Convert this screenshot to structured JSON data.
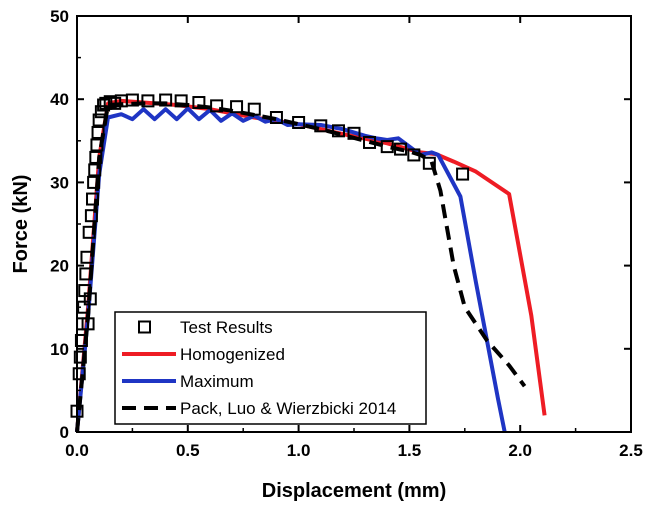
{
  "chart_data": {
    "type": "scatter",
    "xlabel": "Displacement (mm)",
    "ylabel": "Force (kN)",
    "xlim": [
      0,
      2.5
    ],
    "ylim": [
      0,
      50
    ],
    "xticks": [
      0.0,
      0.5,
      1.0,
      1.5,
      2.0,
      2.5
    ],
    "xtick_labels": [
      "0.0",
      "0.5",
      "1.0",
      "1.5",
      "2.0",
      "2.5"
    ],
    "yticks": [
      0,
      10,
      20,
      30,
      40,
      50
    ],
    "ytick_labels": [
      "0",
      "10",
      "20",
      "30",
      "40",
      "50"
    ],
    "grid": false,
    "legend_position": "bottom-left",
    "series": [
      {
        "name": "Test Results",
        "kind": "markers",
        "marker": "open-square",
        "color": "#000000",
        "x": [
          0.0,
          0.01,
          0.015,
          0.02,
          0.025,
          0.03,
          0.035,
          0.04,
          0.045,
          0.05,
          0.055,
          0.06,
          0.065,
          0.07,
          0.075,
          0.08,
          0.085,
          0.09,
          0.095,
          0.1,
          0.11,
          0.12,
          0.13,
          0.15,
          0.17,
          0.2,
          0.25,
          0.32,
          0.4,
          0.47,
          0.55,
          0.63,
          0.72,
          0.8,
          0.9,
          1.0,
          1.1,
          1.18,
          1.25,
          1.32,
          1.4,
          1.46,
          1.52,
          1.59,
          1.74
        ],
        "y": [
          2.5,
          7,
          9,
          11,
          13,
          15,
          17,
          19,
          21,
          13,
          24,
          16,
          26,
          28,
          30,
          31.5,
          33,
          34.5,
          36,
          37.5,
          38.5,
          39.3,
          39.5,
          39.7,
          39.5,
          39.8,
          39.9,
          39.8,
          39.9,
          39.8,
          39.6,
          39.2,
          39.1,
          38.8,
          37.8,
          37.2,
          36.8,
          36.2,
          35.9,
          34.8,
          34.3,
          34.0,
          33.3,
          32.3,
          31.0
        ]
      },
      {
        "name": "Homogenized",
        "kind": "line",
        "color": "#ee1c24",
        "dash": "solid",
        "x": [
          0.0,
          0.05,
          0.1,
          0.14,
          0.2,
          0.3,
          0.45,
          0.6,
          0.8,
          1.0,
          1.2,
          1.4,
          1.55,
          1.62,
          1.7,
          1.8,
          1.95,
          2.05,
          2.11
        ],
        "y": [
          0,
          15,
          33,
          39.5,
          39.8,
          39.6,
          39.3,
          38.8,
          37.8,
          37.0,
          35.8,
          34.7,
          33.6,
          33.4,
          32.5,
          31.3,
          28.6,
          14.0,
          2.0
        ]
      },
      {
        "name": "Maximum",
        "kind": "line",
        "color": "#1f35c4",
        "dash": "solid",
        "x": [
          0.0,
          0.05,
          0.1,
          0.14,
          0.2,
          0.25,
          0.3,
          0.35,
          0.4,
          0.45,
          0.5,
          0.55,
          0.6,
          0.65,
          0.7,
          0.75,
          0.8,
          0.85,
          0.9,
          0.95,
          1.0,
          1.1,
          1.2,
          1.3,
          1.35,
          1.4,
          1.45,
          1.5,
          1.55,
          1.6,
          1.63,
          1.73,
          1.8,
          1.9,
          1.93
        ],
        "y": [
          0,
          14,
          31,
          37.8,
          38.2,
          37.6,
          38.8,
          37.6,
          38.8,
          37.6,
          38.9,
          37.6,
          38.7,
          37.4,
          38.3,
          37.4,
          38.0,
          37.3,
          37.6,
          36.9,
          37.0,
          36.9,
          36.4,
          35.6,
          35.3,
          35.1,
          35.3,
          34.3,
          33.3,
          33.6,
          33.3,
          28.3,
          18.0,
          4.0,
          0.0
        ]
      },
      {
        "name": "Pack, Luo & Wierzbicki 2014",
        "kind": "line",
        "color": "#000000",
        "dash": "dashed",
        "x": [
          0.0,
          0.05,
          0.1,
          0.14,
          0.2,
          0.3,
          0.4,
          0.5,
          0.6,
          0.7,
          0.8,
          0.9,
          1.0,
          1.1,
          1.2,
          1.3,
          1.4,
          1.5,
          1.55,
          1.6,
          1.64,
          1.7,
          1.75,
          1.85,
          1.95,
          2.02
        ],
        "y": [
          0,
          14,
          33,
          39.3,
          39.4,
          39.5,
          39.5,
          39.3,
          39.0,
          38.6,
          38.1,
          37.6,
          37.0,
          36.4,
          35.7,
          35.0,
          34.3,
          33.7,
          33.3,
          32.5,
          29.0,
          20.0,
          15.0,
          11.0,
          8.0,
          5.5
        ]
      }
    ]
  }
}
